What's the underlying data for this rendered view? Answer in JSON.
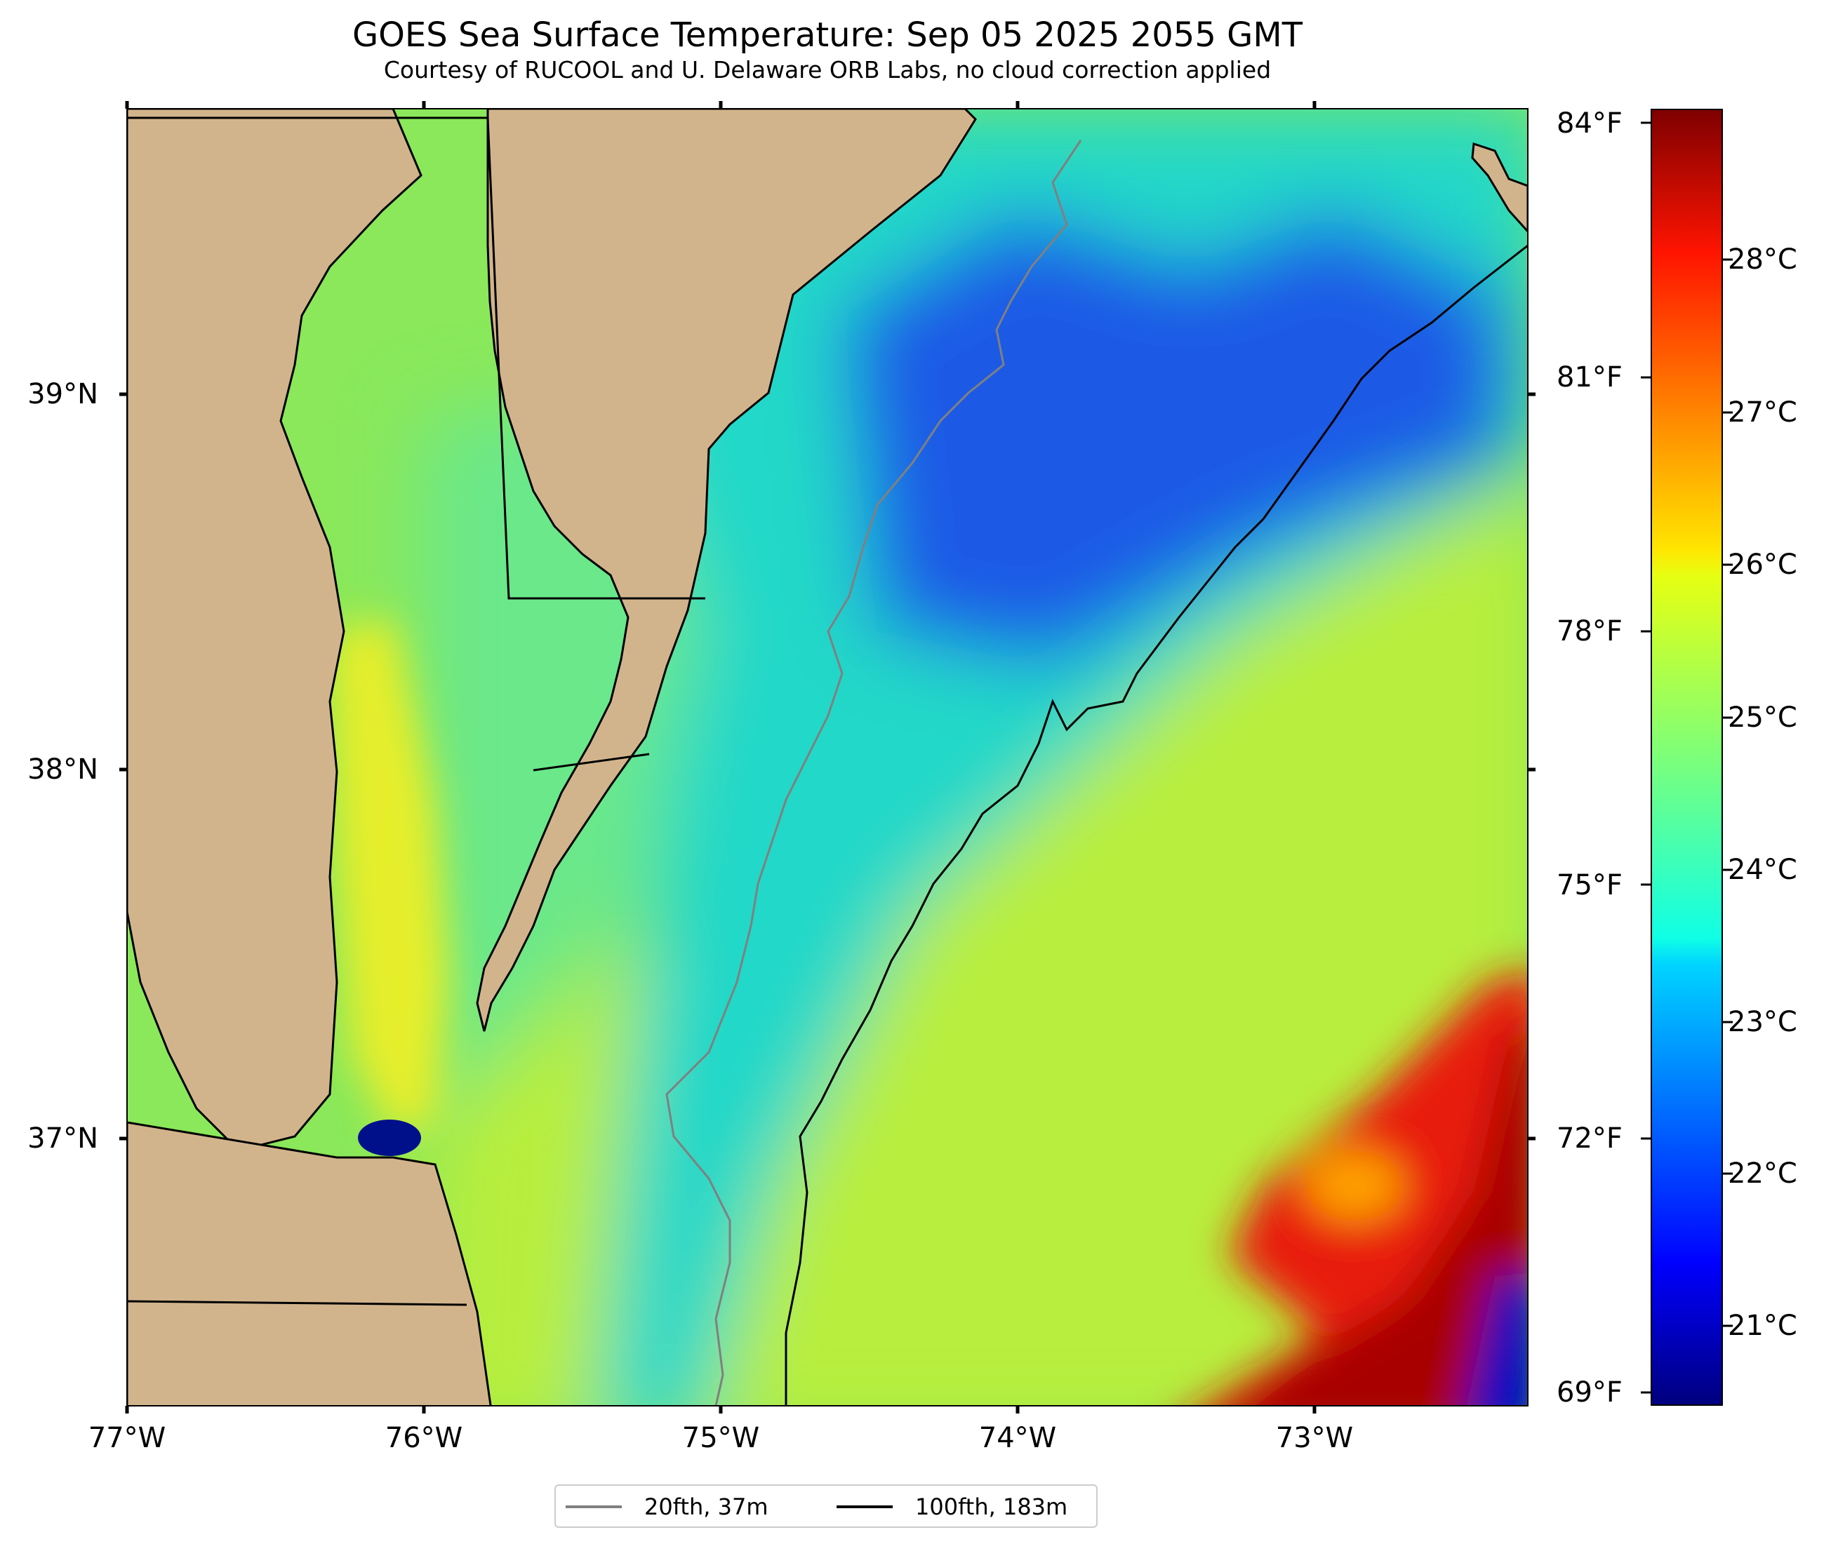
{
  "title": "GOES Sea Surface Temperature: Sep 05 2025 2055 GMT",
  "subtitle": "Courtesy of RUCOOL and U. Delaware ORB Labs, no cloud correction applied",
  "axes": {
    "x_labels": [
      "77°W",
      "76°W",
      "75°W",
      "74°W",
      "73°W"
    ],
    "y_labels": [
      "39°N",
      "38°N",
      "37°N"
    ]
  },
  "legend": {
    "items": [
      {
        "label": "20fth, 37m",
        "color": "#808080"
      },
      {
        "label": "100fth, 183m",
        "color": "#000000"
      }
    ]
  },
  "colorbar": {
    "fahrenheit_labels": [
      "84°F",
      "81°F",
      "78°F",
      "75°F",
      "72°F",
      "69°F"
    ],
    "celsius_labels": [
      "28°C",
      "27°C",
      "26°C",
      "25°C",
      "24°C",
      "23°C",
      "22°C",
      "21°C"
    ],
    "colormap": "jet",
    "range_c": [
      20.5,
      29.0
    ]
  },
  "colors": {
    "land": "#d2b48c",
    "cold_water": "#1a5ae6",
    "mid_water": "#22d8c8",
    "warm_water": "#b8ee3c",
    "hot_water": "#e81d08"
  }
}
